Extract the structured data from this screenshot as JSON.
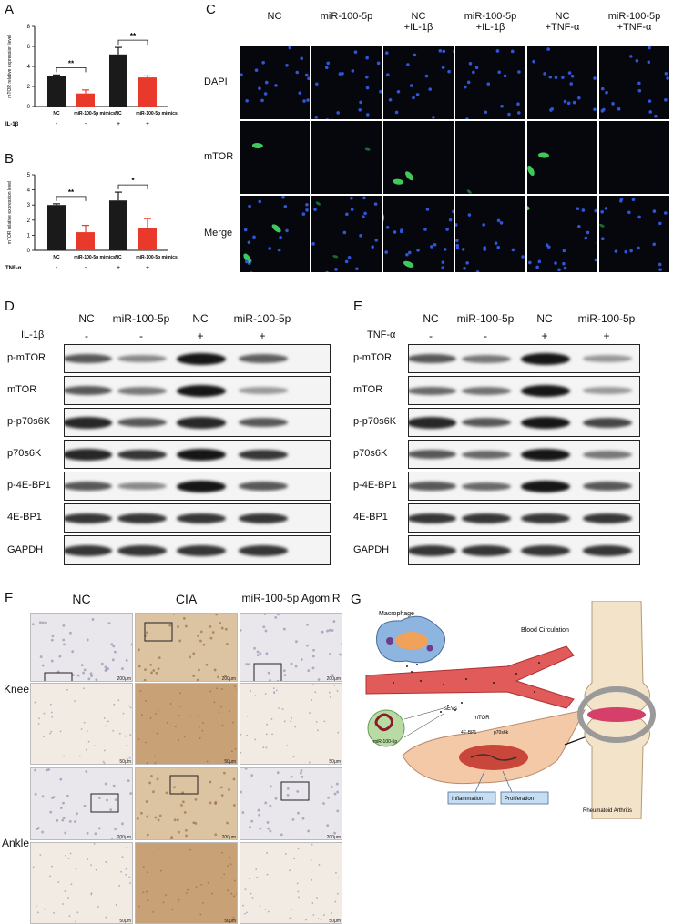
{
  "panels": {
    "A": "A",
    "B": "B",
    "C": "C",
    "D": "D",
    "E": "E",
    "F": "F",
    "G": "G"
  },
  "chart_data": [
    {
      "type": "bar",
      "panel": "A",
      "ylabel": "mTOR relative expression level",
      "ylim": [
        0,
        8
      ],
      "yticks": [
        "0",
        "2",
        "4",
        "6",
        "8"
      ],
      "categories": [
        "NC",
        "miR-100-5p mimics",
        "NC",
        "miR-100-5p mimics"
      ],
      "values": [
        3.0,
        1.3,
        5.2,
        2.9
      ],
      "errors": [
        0.15,
        0.35,
        0.7,
        0.15
      ],
      "colors": [
        "#1a1a1a",
        "#e8392a",
        "#1a1a1a",
        "#e8392a"
      ],
      "treatment_label": "IL-1β",
      "treatment_signs": [
        "-",
        "-",
        "+",
        "+"
      ],
      "significance": [
        {
          "between": [
            0,
            1
          ],
          "label": "**"
        },
        {
          "between": [
            2,
            3
          ],
          "label": "**"
        }
      ]
    },
    {
      "type": "bar",
      "panel": "B",
      "ylabel": "mTOR relative expression level",
      "ylim": [
        0,
        5
      ],
      "yticks": [
        "0",
        "1",
        "2",
        "3",
        "4",
        "5"
      ],
      "categories": [
        "NC",
        "miR-100-5p mimics",
        "NC",
        "miR-100-5p mimics"
      ],
      "values": [
        3.0,
        1.2,
        3.3,
        1.5
      ],
      "errors": [
        0.08,
        0.45,
        0.55,
        0.6
      ],
      "colors": [
        "#1a1a1a",
        "#e8392a",
        "#1a1a1a",
        "#e8392a"
      ],
      "treatment_label": "TNF-α",
      "treatment_signs": [
        "-",
        "-",
        "+",
        "+"
      ],
      "significance": [
        {
          "between": [
            0,
            1
          ],
          "label": "**"
        },
        {
          "between": [
            2,
            3
          ],
          "label": "*"
        }
      ]
    }
  ],
  "panelC": {
    "columns": [
      "NC",
      "miR-100-5p",
      "NC\n+IL-1β",
      "miR-100-5p\n+IL-1β",
      "NC\n+TNF-α",
      "miR-100-5p\n+TNF-α"
    ],
    "rows": [
      "DAPI",
      "mTOR",
      "Merge"
    ]
  },
  "panelD": {
    "columns": [
      "NC",
      "miR-100-5p",
      "NC",
      "miR-100-5p"
    ],
    "treatment_label": "IL-1β",
    "treatment_signs": [
      "-",
      "-",
      "+",
      "+"
    ],
    "rows": [
      "p-mTOR",
      "mTOR",
      "p-p70s6K",
      "p70s6K",
      "p-4E-BP1",
      "4E-BP1",
      "GAPDH"
    ]
  },
  "panelE": {
    "columns": [
      "NC",
      "miR-100-5p",
      "NC",
      "miR-100-5p"
    ],
    "treatment_label": "TNF-α",
    "treatment_signs": [
      "-",
      "-",
      "+",
      "+"
    ],
    "rows": [
      "p-mTOR",
      "mTOR",
      "p-p70s6K",
      "p70s6K",
      "p-4E-BP1",
      "4E-BP1",
      "GAPDH"
    ]
  },
  "panelF": {
    "columns": [
      "NC",
      "CIA",
      "miR-100-5p AgomiR"
    ],
    "rows": [
      "Knee",
      "Ankle"
    ],
    "scale_low": "200μm",
    "scale_high": "50μm"
  },
  "panelG": {
    "macrophage": "Macrophage",
    "circulation": "Blood Circulation",
    "sevs": "sEVs",
    "mir": "miR-100-5p",
    "mtor": "mTOR",
    "ebp1": "4E-BP1",
    "p70": "p70s6k",
    "inflammation": "Inflammation",
    "proliferation": "Proliferation",
    "ra": "Rheumatoid Arthritis"
  }
}
